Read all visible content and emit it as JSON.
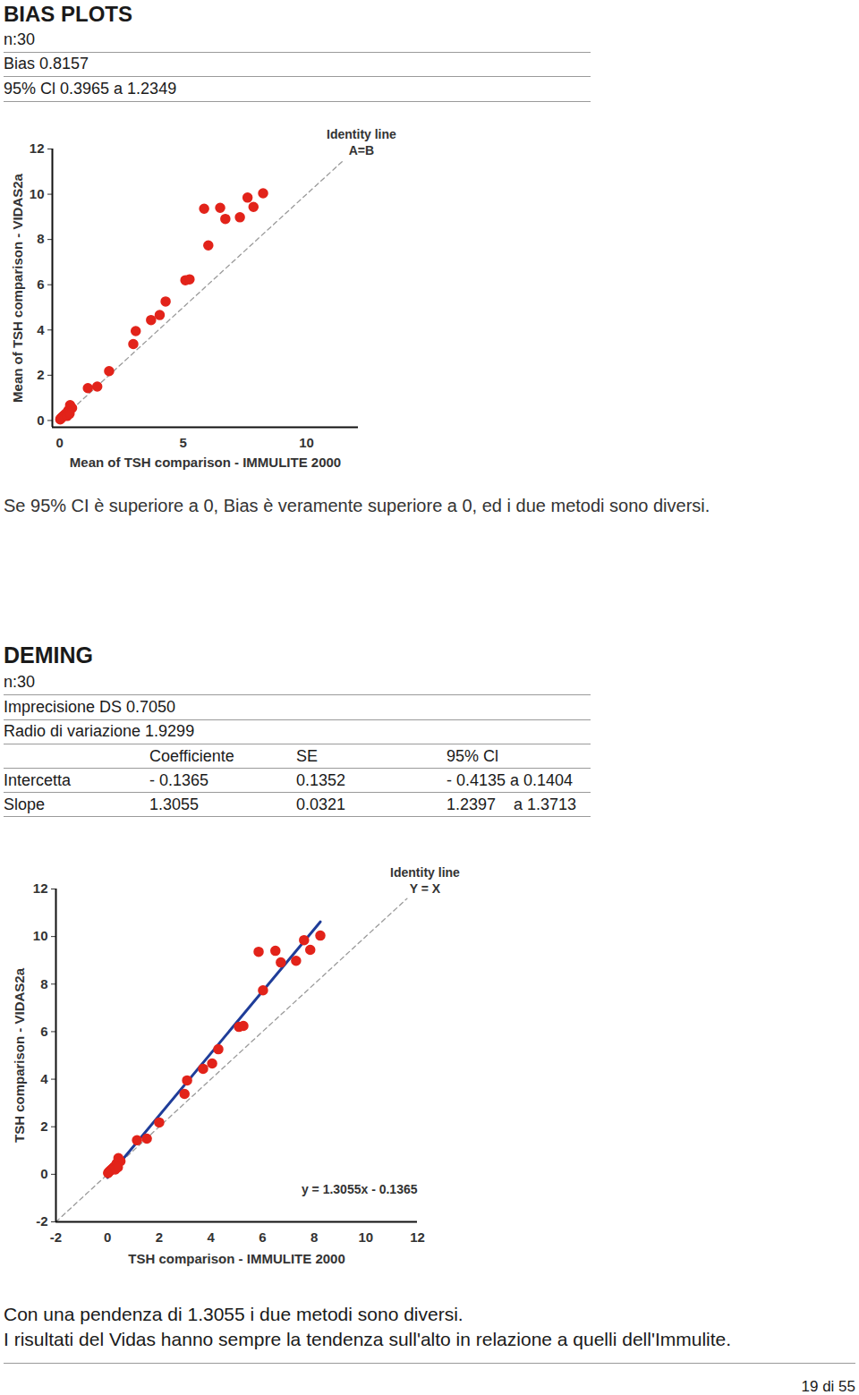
{
  "bias": {
    "title": "BIAS PLOTS",
    "lines": [
      "n:30",
      "Bias 0.8157",
      "95% Cl 0.3965 a 1.2349"
    ],
    "note": "Se 95% CI è superiore a 0, Bias è veramente superiore a 0, ed i due metodi sono diversi."
  },
  "deming": {
    "title": "DEMING",
    "lines": [
      "n:30",
      "Imprecisione DS 0.7050",
      "Radio di variazione 1.9299"
    ],
    "table": {
      "header": [
        "",
        "Coefficiente",
        "SE",
        "95% Cl"
      ],
      "rows": [
        [
          "Intercetta",
          "- 0.1365",
          "0.1352",
          "- 0.4135 a 0.1404"
        ],
        [
          "Slope",
          "1.3055",
          "0.0321",
          "1.2397    a 1.3713"
        ]
      ]
    },
    "notes": [
      "Con una pendenza di 1.3055 i due metodi sono diversi.",
      "I risultati del Vidas hanno sempre la tendenza sull'alto in relazione a quelli dell'Immulite."
    ]
  },
  "footer": "19 di 55",
  "chart_data": [
    {
      "type": "scatter",
      "x_label": "Mean of TSH comparison - IMMULITE 2000",
      "y_label": "Mean of TSH comparison - VIDAS2a",
      "x": [
        5.85,
        6.02,
        6.5,
        6.71,
        7.3,
        7.61,
        7.85,
        8.24,
        5.09,
        5.26,
        4.29,
        4.05,
        3.7,
        3.08,
        2.98,
        2.0,
        1.52,
        1.14,
        0.42,
        0.5,
        0.35,
        0.3,
        0.25,
        0.2,
        0.15,
        0.1,
        0.05,
        0.02,
        0.3,
        0.4
      ],
      "y": [
        9.36,
        7.74,
        9.4,
        8.91,
        8.98,
        9.85,
        9.44,
        10.04,
        6.2,
        6.24,
        5.26,
        4.66,
        4.44,
        3.95,
        3.38,
        2.18,
        1.5,
        1.43,
        0.68,
        0.55,
        0.45,
        0.35,
        0.3,
        0.25,
        0.2,
        0.15,
        0.1,
        0.05,
        0.2,
        0.3
      ],
      "color": "#e2231a",
      "marker": "circle",
      "xlim": [
        -0.3,
        12.1
      ],
      "ylim": [
        -0.3,
        12
      ],
      "xticks": [
        0,
        5,
        10
      ],
      "yticks": [
        0,
        2,
        4,
        6,
        8,
        10,
        12
      ],
      "lines": [
        {
          "name": "Identity line",
          "label": "A=B",
          "x": [
            0,
            11.5
          ],
          "y": [
            0,
            11.5
          ],
          "color": "#9a9a9a",
          "line_style": "dashed"
        }
      ]
    },
    {
      "type": "scatter",
      "x_label": "TSH comparison - IMMULITE 2000",
      "y_label": "TSH comparison - VIDAS2a",
      "x": [
        5.85,
        6.02,
        6.5,
        6.71,
        7.3,
        7.61,
        7.85,
        8.24,
        5.09,
        5.26,
        4.29,
        4.05,
        3.7,
        3.08,
        2.98,
        2.0,
        1.52,
        1.14,
        0.42,
        0.5,
        0.35,
        0.3,
        0.25,
        0.2,
        0.15,
        0.1,
        0.05,
        0.02,
        0.3,
        0.4
      ],
      "y": [
        9.36,
        7.74,
        9.4,
        8.91,
        8.98,
        9.85,
        9.44,
        10.04,
        6.2,
        6.24,
        5.26,
        4.66,
        4.44,
        3.95,
        3.38,
        2.18,
        1.5,
        1.43,
        0.68,
        0.55,
        0.45,
        0.35,
        0.3,
        0.25,
        0.2,
        0.15,
        0.1,
        0.05,
        0.2,
        0.3
      ],
      "color": "#e2231a",
      "marker": "circle",
      "xlim": [
        -2,
        12
      ],
      "ylim": [
        -2,
        12
      ],
      "xticks": [
        -2,
        0,
        2,
        4,
        6,
        8,
        10,
        12
      ],
      "yticks": [
        -2,
        0,
        2,
        4,
        6,
        8,
        10,
        12
      ],
      "lines": [
        {
          "name": "Identity line",
          "label": "Y = X",
          "x": [
            -2,
            11.6
          ],
          "y": [
            -2,
            11.6
          ],
          "color": "#9a9a9a",
          "line_style": "dashed"
        },
        {
          "label": "y = 1.3055x - 0.1365",
          "x": [
            0,
            8.24
          ],
          "y": [
            -0.1365,
            10.62
          ],
          "color": "#1f3d99",
          "line_style": "solid"
        }
      ]
    }
  ]
}
